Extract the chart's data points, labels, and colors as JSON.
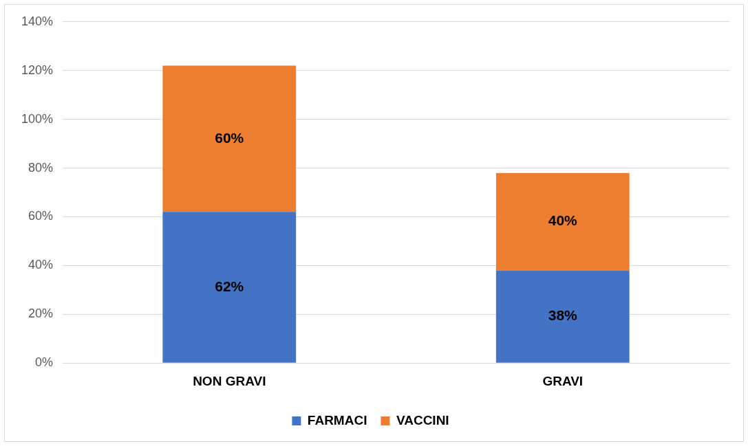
{
  "chart_data": {
    "type": "bar",
    "stacked": true,
    "categories": [
      "NON GRAVI",
      "GRAVI"
    ],
    "series": [
      {
        "name": "FARMACI",
        "color": "#4472c4",
        "values": [
          62,
          38
        ],
        "value_labels": [
          "62%",
          "38%"
        ]
      },
      {
        "name": "VACCINI",
        "color": "#ed7d31",
        "values": [
          60,
          40
        ],
        "value_labels": [
          "60%",
          "40%"
        ]
      }
    ],
    "ylim": [
      0,
      140
    ],
    "yticks": [
      {
        "value": 0,
        "label": "0%"
      },
      {
        "value": 20,
        "label": "20%"
      },
      {
        "value": 40,
        "label": "40%"
      },
      {
        "value": 60,
        "label": "60%"
      },
      {
        "value": 80,
        "label": "80%"
      },
      {
        "value": 100,
        "label": "100%"
      },
      {
        "value": 120,
        "label": "120%"
      },
      {
        "value": 140,
        "label": "140%"
      }
    ],
    "grid": "y",
    "legend": "bottom"
  }
}
